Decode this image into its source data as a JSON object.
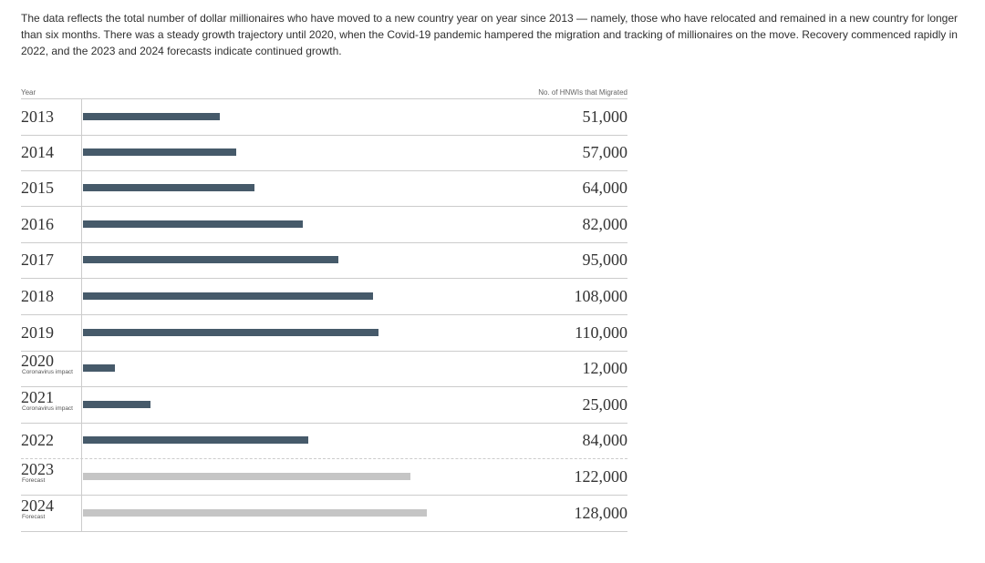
{
  "description": "The data reflects the total number of dollar millionaires who have moved to a new country year on year since 2013 — namely, those who have relocated and remained in a new country for longer than six months. There was a steady growth trajectory until 2020, when the Covid-19 pandemic hampered the migration and tracking of millionaires on the move. Recovery commenced rapidly in 2022, and the 2023 and 2024 forecasts indicate continued growth.",
  "colors": {
    "bar": "#465a6a",
    "forecast_bar": "#c5c5c5",
    "grid": "#cccccc"
  },
  "chart_data": {
    "type": "bar",
    "orientation": "horizontal",
    "category_header": "Year",
    "value_header": "No. of HNWIs that Migrated",
    "xlim": [
      0,
      130000
    ],
    "categories": [
      "2013",
      "2014",
      "2015",
      "2016",
      "2017",
      "2018",
      "2019",
      "2020",
      "2021",
      "2022",
      "2023",
      "2024"
    ],
    "values": [
      51000,
      57000,
      64000,
      82000,
      95000,
      108000,
      110000,
      12000,
      25000,
      84000,
      122000,
      128000
    ],
    "value_labels": [
      "51,000",
      "57,000",
      "64,000",
      "82,000",
      "95,000",
      "108,000",
      "110,000",
      "12,000",
      "25,000",
      "84,000",
      "122,000",
      "128,000"
    ],
    "notes": [
      "",
      "",
      "",
      "",
      "",
      "",
      "",
      "Coronavirus impact",
      "Coronavirus impact",
      "",
      "Forecast",
      "Forecast"
    ],
    "forecast": [
      false,
      false,
      false,
      false,
      false,
      false,
      false,
      false,
      false,
      false,
      true,
      true
    ]
  }
}
